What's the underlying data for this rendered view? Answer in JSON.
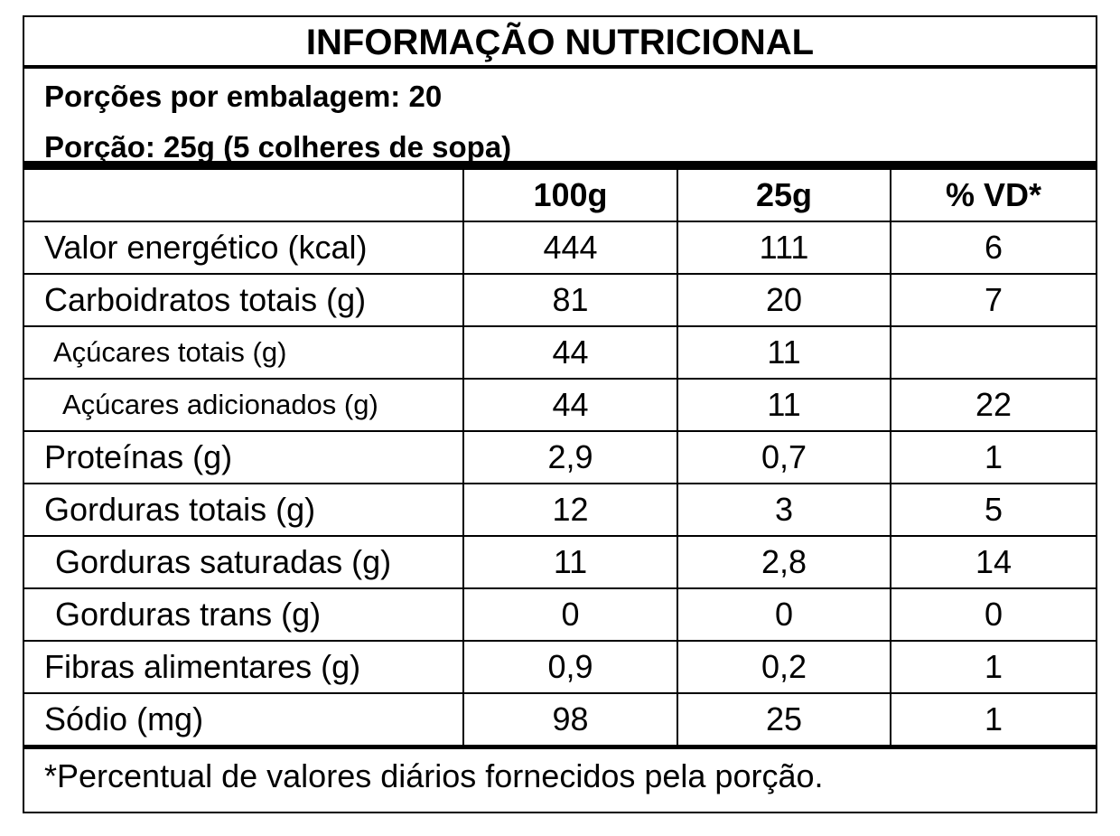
{
  "title": "INFORMAÇÃO NUTRICIONAL",
  "serving": [
    "Porções por embalagem: 20",
    "Porção: 25g (5 colheres de sopa)"
  ],
  "table": {
    "header": [
      "100g",
      "25g",
      "% VD*"
    ],
    "rows": [
      [
        "Valor energético (kcal)",
        "444",
        "111",
        "6"
      ],
      [
        "Carboidratos totais (g)",
        "81",
        "20",
        "7"
      ],
      [
        "Açúcares totais (g)",
        "44",
        "11"
      ],
      [
        "Açúcares adicionados (g)",
        "44",
        "11",
        "22"
      ],
      [
        "Proteínas (g)",
        "2,9",
        "0,7",
        "1"
      ],
      [
        "Gorduras totais (g)",
        "12",
        "3",
        "5"
      ],
      [
        "Gorduras saturadas (g)",
        "11",
        "2,8",
        "14"
      ],
      [
        "Gorduras trans (g)",
        "0",
        "0",
        "0"
      ],
      [
        "Fibras alimentares (g)",
        "0,9",
        "0,2",
        "1"
      ],
      [
        "Sódio (mg)",
        "98",
        "25",
        "1"
      ]
    ]
  },
  "footnote": "*Percentual de valores diários fornecidos pela porção."
}
